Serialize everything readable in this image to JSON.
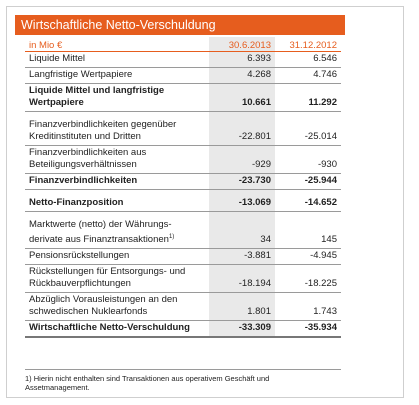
{
  "title": "Wirtschaftliche Netto-Verschuldung",
  "header": {
    "unit": "in Mio €",
    "col1": "30.6.2013",
    "col2": "31.12.2012"
  },
  "rows": [
    {
      "line1": "Liquide Mittel",
      "line2": "",
      "v1": "6.393",
      "v2": "6.546",
      "bold": false,
      "gap_before": false
    },
    {
      "line1": "Langfristige Wertpapiere",
      "line2": "",
      "v1": "4.268",
      "v2": "4.746",
      "bold": false,
      "gap_before": false
    },
    {
      "line1": "Liquide Mittel und langfristige",
      "line2": "Wertpapiere",
      "v1": "10.661",
      "v2": "11.292",
      "bold": true,
      "gap_before": false
    },
    {
      "line1": "Finanzverbindlichkeiten gegenüber",
      "line2": "Kreditinstituten und Dritten",
      "v1": "-22.801",
      "v2": "-25.014",
      "bold": false,
      "gap_before": true
    },
    {
      "line1": "Finanzverbindlichkeiten aus",
      "line2": "Beteiligungsverhältnissen",
      "v1": "-929",
      "v2": "-930",
      "bold": false,
      "gap_before": false
    },
    {
      "line1": "Finanzverbindlichkeiten",
      "line2": "",
      "v1": "-23.730",
      "v2": "-25.944",
      "bold": true,
      "gap_before": false
    },
    {
      "line1": "Netto-Finanzposition",
      "line2": "",
      "v1": "-13.069",
      "v2": "-14.652",
      "bold": true,
      "gap_before": true
    },
    {
      "line1": "Marktwerte (netto) der Währungs-",
      "line2": "derivate aus Finanztransaktionen",
      "sup": "1)",
      "v1": "34",
      "v2": "145",
      "bold": false,
      "gap_before": true
    },
    {
      "line1": "Pensionsrückstellungen",
      "line2": "",
      "v1": "-3.881",
      "v2": "-4.945",
      "bold": false,
      "gap_before": false
    },
    {
      "line1": "Rückstellungen für Entsorgungs- und",
      "line2": "Rückbauverpflichtungen",
      "v1": "-18.194",
      "v2": "-18.225",
      "bold": false,
      "gap_before": false
    },
    {
      "line1": "Abzüglich Vorausleistungen an den",
      "line2": "schwedischen Nuklearfonds",
      "v1": "1.801",
      "v2": "1.743",
      "bold": false,
      "gap_before": false
    },
    {
      "line1": "Wirtschaftliche Netto-Verschuldung",
      "line2": "",
      "v1": "-33.309",
      "v2": "-35.934",
      "bold": true,
      "gap_before": false
    }
  ],
  "footnote": {
    "line1": "1) Hierin nicht enthalten sind Transaktionen aus operativem Geschäft und",
    "line2": "Assetmanagement."
  },
  "colors": {
    "accent": "#e65d1e",
    "highlight_column": "#e9e9e9"
  }
}
